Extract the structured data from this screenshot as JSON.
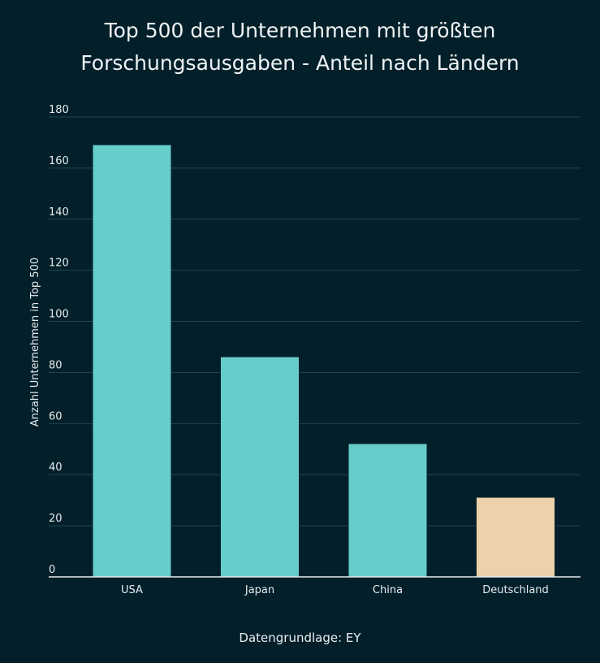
{
  "chart_data": {
    "type": "bar",
    "title_lines": [
      "Top 500 der Unternehmen mit größten",
      "Forschungsausgaben - Anteil nach Ländern"
    ],
    "categories": [
      "USA",
      "Japan",
      "China",
      "Deutschland"
    ],
    "values": [
      169,
      86,
      52,
      31
    ],
    "bar_colors": [
      "#67cdca",
      "#67cdca",
      "#67cdca",
      "#ecd2aa"
    ],
    "xlabel": "",
    "ylabel": "Anzahl Unternehmen in Top 500",
    "ylim": [
      0,
      180
    ],
    "yticks": [
      0,
      20,
      40,
      60,
      80,
      100,
      120,
      140,
      160,
      180
    ],
    "grid": true,
    "source": "Datengrundlage: EY"
  },
  "colors": {
    "background": "#03202a",
    "grid": "#1f4350",
    "axis": "#e6ecee",
    "text": "#e9eef0"
  }
}
